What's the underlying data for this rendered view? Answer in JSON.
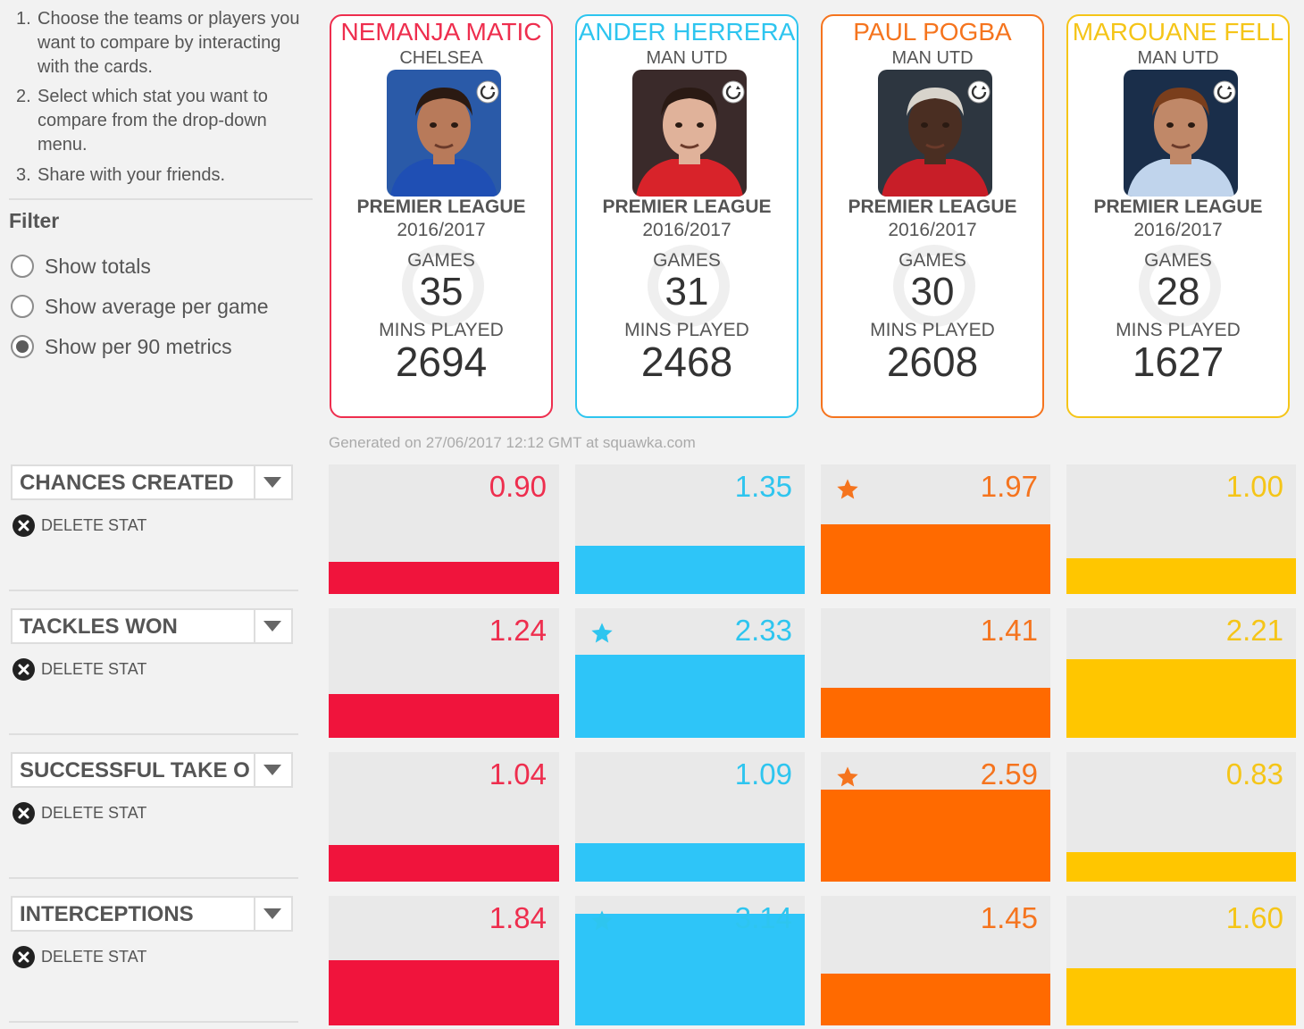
{
  "instructions": [
    {
      "num": "1.",
      "text": "Choose the teams or players you want to compare by interacting with the cards."
    },
    {
      "num": "2.",
      "text": "Select which stat you want to compare from the drop-down menu."
    },
    {
      "num": "3.",
      "text": "Share with your friends."
    }
  ],
  "filter": {
    "title": "Filter",
    "options": [
      {
        "label": "Show totals",
        "checked": false
      },
      {
        "label": "Show average per game",
        "checked": false
      },
      {
        "label": "Show per 90 metrics",
        "checked": true
      }
    ]
  },
  "players": [
    {
      "name": "NEMANJA MATIC",
      "team": "CHELSEA",
      "league": "PREMIER LEAGUE",
      "season": "2016/2017",
      "games_label": "GAMES",
      "games": "35",
      "mins_label": "MINS PLAYED",
      "mins": "2694",
      "color": "#ee2e4e",
      "bar_color": "#f0143c",
      "photo_bg": "#2a5aa8",
      "kit": "#1f4fb4",
      "skin": "#b87a5a",
      "hair": "#2b1a12"
    },
    {
      "name": "ANDER HERRERA",
      "team": "MAN UTD",
      "league": "PREMIER LEAGUE",
      "season": "2016/2017",
      "games_label": "GAMES",
      "games": "31",
      "mins_label": "MINS PLAYED",
      "mins": "2468",
      "color": "#2ec5ef",
      "bar_color": "#2ec5f8",
      "photo_bg": "#3a2a2a",
      "kit": "#d8232a",
      "skin": "#e0b29a",
      "hair": "#2a1a14"
    },
    {
      "name": "PAUL POGBA",
      "team": "MAN UTD",
      "league": "PREMIER LEAGUE",
      "season": "2016/2017",
      "games_label": "GAMES",
      "games": "30",
      "mins_label": "MINS PLAYED",
      "mins": "2608",
      "color": "#f5741e",
      "bar_color": "#ff6a00",
      "photo_bg": "#2d3640",
      "kit": "#c81e28",
      "skin": "#4a2e22",
      "hair": "#d8d4cc"
    },
    {
      "name": "MAROUANE FELL",
      "team": "MAN UTD",
      "league": "PREMIER LEAGUE",
      "season": "2016/2017",
      "games_label": "GAMES",
      "games": "28",
      "mins_label": "MINS PLAYED",
      "mins": "1627",
      "color": "#f5c518",
      "bar_color": "#ffc600",
      "photo_bg": "#1a2e4a",
      "kit": "#c0d4ec",
      "skin": "#c08868",
      "hair": "#7a3e1c"
    }
  ],
  "generated_text": "Generated on 27/06/2017 12:12 GMT at squawka.com",
  "delete_label": "DELETE STAT",
  "icons": {
    "radio": "radio-icon",
    "swap": "swap-player-icon",
    "dropdown": "chevron-down-icon",
    "delete": "close-circle-icon",
    "star": "star-icon"
  },
  "stats": [
    {
      "name": "CHANCES CREATED",
      "values": [
        "0.90",
        "1.35",
        "1.97",
        "1.00"
      ],
      "best": 2
    },
    {
      "name": "TACKLES WON",
      "values": [
        "1.24",
        "2.33",
        "1.41",
        "2.21"
      ],
      "best": 1
    },
    {
      "name": "SUCCESSFUL TAKE O",
      "values": [
        "1.04",
        "1.09",
        "2.59",
        "0.83"
      ],
      "best": 2
    },
    {
      "name": "INTERCEPTIONS",
      "values": [
        "1.84",
        "3.14",
        "1.45",
        "1.60"
      ],
      "best": 1
    }
  ],
  "chart_data": {
    "type": "bar",
    "categories": [
      "CHANCES CREATED",
      "TACKLES WON",
      "SUCCESSFUL TAKE O",
      "INTERCEPTIONS"
    ],
    "series": [
      {
        "name": "NEMANJA MATIC",
        "values": [
          0.9,
          1.24,
          1.04,
          1.84
        ]
      },
      {
        "name": "ANDER HERRERA",
        "values": [
          1.35,
          2.33,
          1.09,
          3.14
        ]
      },
      {
        "name": "PAUL POGBA",
        "values": [
          1.97,
          1.41,
          2.59,
          1.45
        ]
      },
      {
        "name": "MAROUANE FELL",
        "values": [
          1.0,
          2.21,
          0.83,
          1.6
        ]
      }
    ],
    "title": "",
    "xlabel": "",
    "ylabel": ""
  }
}
